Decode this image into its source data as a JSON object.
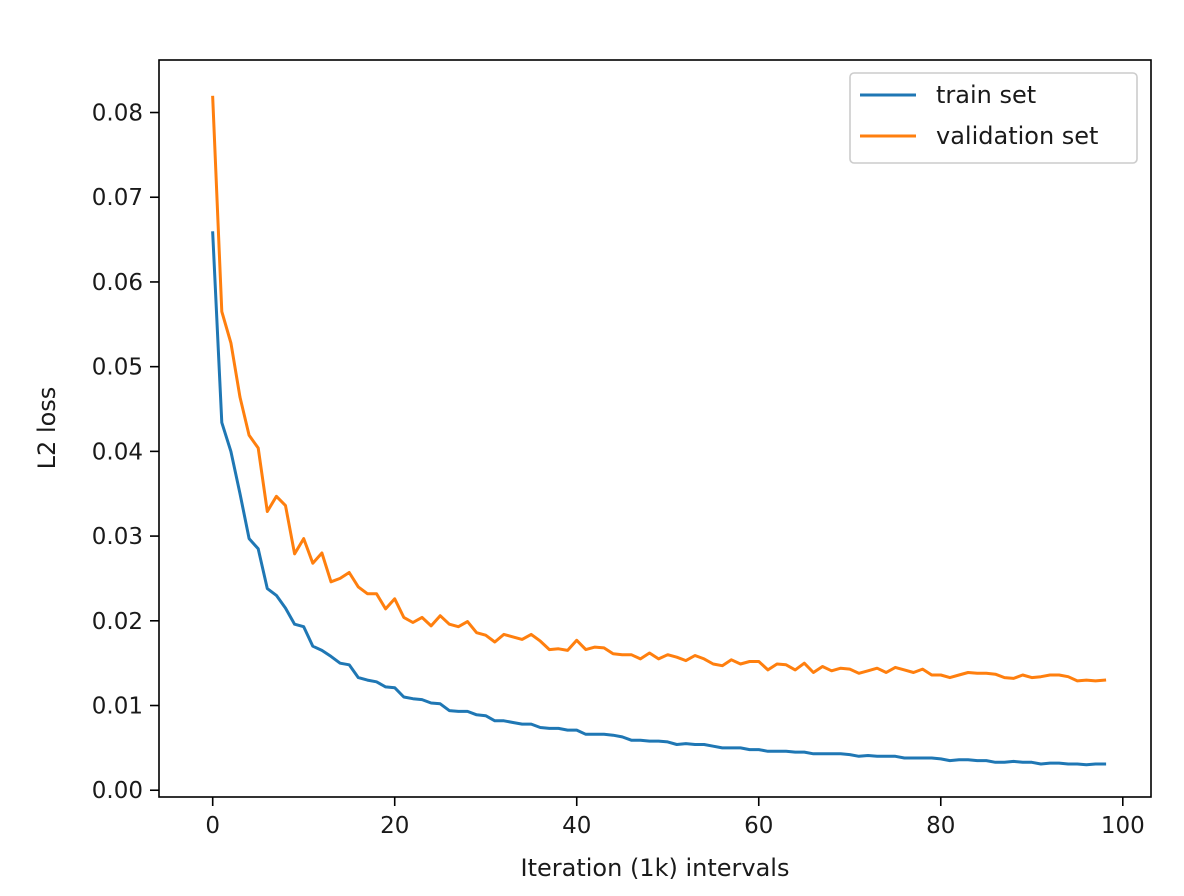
{
  "chart_data": {
    "type": "line",
    "title": "",
    "xlabel": "Iteration (1k) intervals",
    "ylabel": "L2 loss",
    "xlim": [
      -5.9,
      103.1
    ],
    "ylim": [
      -0.0008,
      0.0862
    ],
    "xticks": [
      0,
      20,
      40,
      60,
      80,
      100
    ],
    "yticks": [
      0.0,
      0.01,
      0.02,
      0.03,
      0.04,
      0.05,
      0.06,
      0.07,
      0.08
    ],
    "xtick_labels": [
      "0",
      "20",
      "40",
      "60",
      "80",
      "100"
    ],
    "ytick_labels": [
      "0.00",
      "0.01",
      "0.02",
      "0.03",
      "0.04",
      "0.05",
      "0.06",
      "0.07",
      "0.08"
    ],
    "grid": false,
    "legend_position": "top-right",
    "x": [
      0,
      1,
      2,
      3,
      4,
      5,
      6,
      7,
      8,
      9,
      10,
      11,
      12,
      13,
      14,
      15,
      16,
      17,
      18,
      19,
      20,
      21,
      22,
      23,
      24,
      25,
      26,
      27,
      28,
      29,
      30,
      31,
      32,
      33,
      34,
      35,
      36,
      37,
      38,
      39,
      40,
      41,
      42,
      43,
      44,
      45,
      46,
      47,
      48,
      49,
      50,
      51,
      52,
      53,
      54,
      55,
      56,
      57,
      58,
      59,
      60,
      61,
      62,
      63,
      64,
      65,
      66,
      67,
      68,
      69,
      70,
      71,
      72,
      73,
      74,
      75,
      76,
      77,
      78,
      79,
      80,
      81,
      82,
      83,
      84,
      85,
      86,
      87,
      88,
      89,
      90,
      91,
      92,
      93,
      94,
      95,
      96,
      97,
      98
    ],
    "series": [
      {
        "name": "train set",
        "color": "#1f77b4",
        "values": [
          0.0658,
          0.0434,
          0.04,
          0.035,
          0.0297,
          0.0285,
          0.0238,
          0.023,
          0.0215,
          0.0196,
          0.0193,
          0.017,
          0.0165,
          0.0158,
          0.015,
          0.0148,
          0.0133,
          0.013,
          0.0128,
          0.0122,
          0.0121,
          0.011,
          0.0108,
          0.0107,
          0.0103,
          0.0102,
          0.0094,
          0.0093,
          0.0093,
          0.0089,
          0.0088,
          0.0082,
          0.0082,
          0.008,
          0.0078,
          0.0078,
          0.0074,
          0.0073,
          0.0073,
          0.0071,
          0.0071,
          0.0066,
          0.0066,
          0.0066,
          0.0065,
          0.0063,
          0.0059,
          0.0059,
          0.0058,
          0.0058,
          0.0057,
          0.0054,
          0.0055,
          0.0054,
          0.0054,
          0.0052,
          0.005,
          0.005,
          0.005,
          0.0048,
          0.0048,
          0.0046,
          0.0046,
          0.0046,
          0.0045,
          0.0045,
          0.0043,
          0.0043,
          0.0043,
          0.0043,
          0.0042,
          0.004,
          0.0041,
          0.004,
          0.004,
          0.004,
          0.0038,
          0.0038,
          0.0038,
          0.0038,
          0.0037,
          0.0035,
          0.0036,
          0.0036,
          0.0035,
          0.0035,
          0.0033,
          0.0033,
          0.0034,
          0.0033,
          0.0033,
          0.0031,
          0.0032,
          0.0032,
          0.0031,
          0.0031,
          0.003,
          0.0031,
          0.0031
        ]
      },
      {
        "name": "validation set",
        "color": "#ff7f0e",
        "values": [
          0.0818,
          0.0565,
          0.0528,
          0.0464,
          0.0419,
          0.0404,
          0.0329,
          0.0347,
          0.0336,
          0.0279,
          0.0297,
          0.0268,
          0.028,
          0.0246,
          0.025,
          0.0257,
          0.024,
          0.0232,
          0.0232,
          0.0214,
          0.0226,
          0.0204,
          0.0198,
          0.0204,
          0.0194,
          0.0206,
          0.0196,
          0.0193,
          0.0199,
          0.0186,
          0.0183,
          0.0175,
          0.0184,
          0.0181,
          0.0178,
          0.0184,
          0.0176,
          0.0166,
          0.0167,
          0.0165,
          0.0177,
          0.0166,
          0.0169,
          0.0168,
          0.0161,
          0.016,
          0.016,
          0.0155,
          0.0162,
          0.0155,
          0.016,
          0.0157,
          0.0153,
          0.0159,
          0.0155,
          0.0149,
          0.0147,
          0.0154,
          0.0149,
          0.0152,
          0.0152,
          0.0142,
          0.0149,
          0.0148,
          0.0142,
          0.015,
          0.0139,
          0.0146,
          0.0141,
          0.0144,
          0.0143,
          0.0138,
          0.0141,
          0.0144,
          0.0139,
          0.0145,
          0.0142,
          0.0139,
          0.0143,
          0.0136,
          0.0136,
          0.0133,
          0.0136,
          0.0139,
          0.0138,
          0.0138,
          0.0137,
          0.0133,
          0.0132,
          0.0136,
          0.0133,
          0.0134,
          0.0136,
          0.0136,
          0.0134,
          0.0129,
          0.013,
          0.0129,
          0.013
        ]
      }
    ]
  }
}
